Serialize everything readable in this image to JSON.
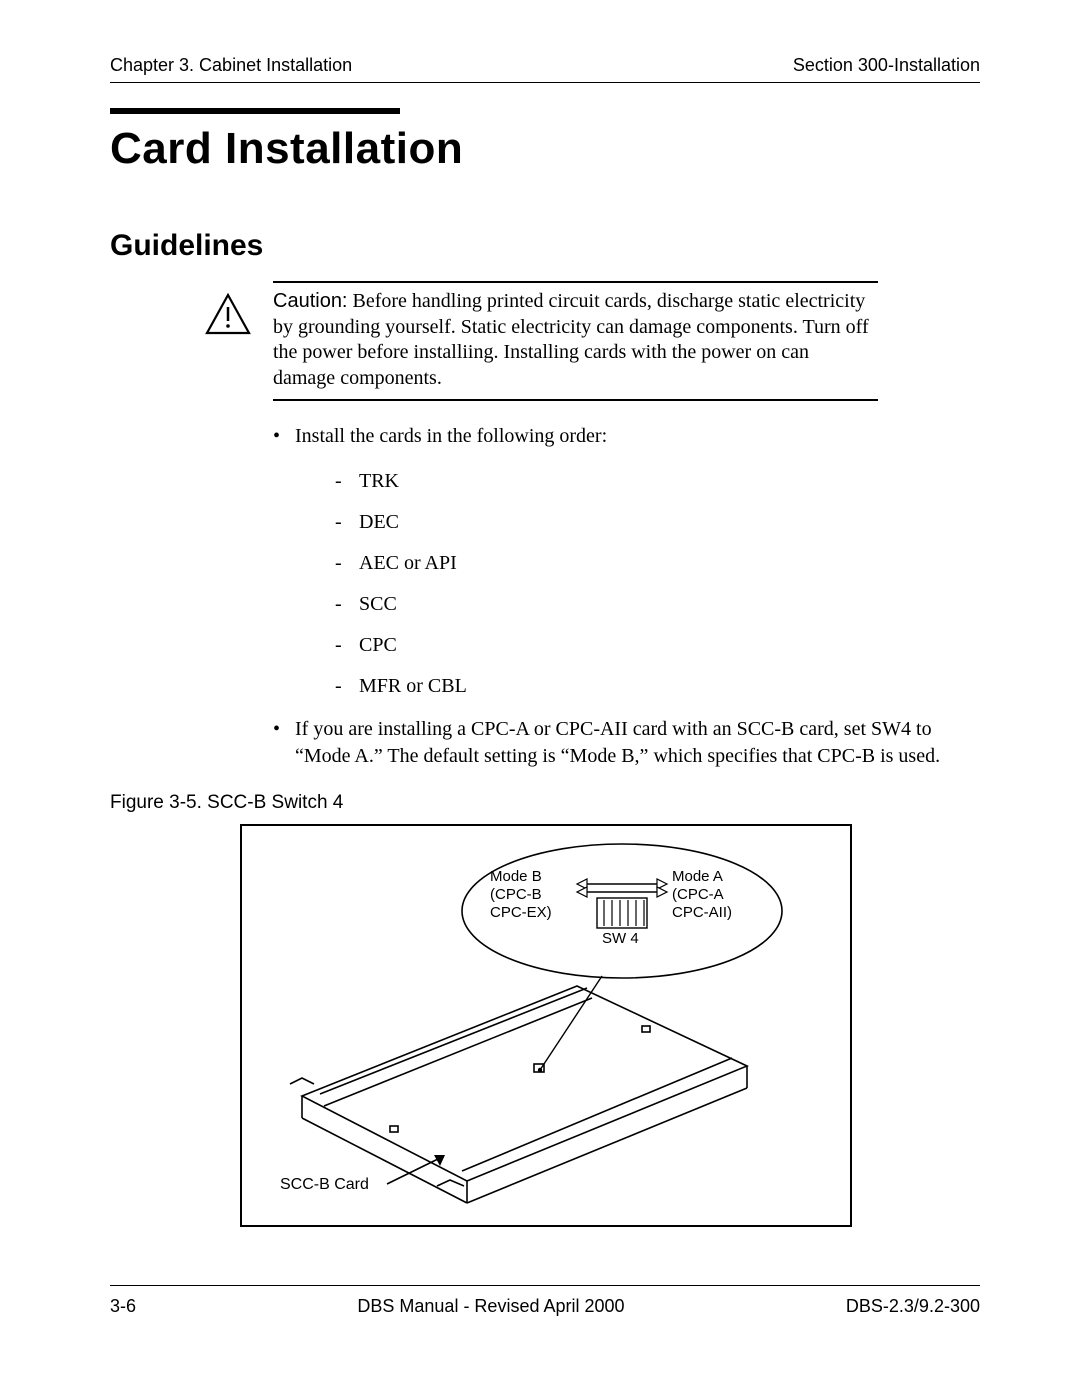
{
  "header": {
    "left": "Chapter 3. Cabinet Installation",
    "right": "Section 300-Installation"
  },
  "title": "Card Installation",
  "subtitle": "Guidelines",
  "caution": {
    "label": "Caution:",
    "text": " Before handling printed circuit cards, discharge static electricity by grounding yourself.  Static electricity can damage components.  Turn off the power before installiing.  Installing cards with the power on can damage components."
  },
  "bullet1": "Install the cards in the following order:",
  "order_items": [
    "TRK",
    "DEC",
    "AEC or API",
    "SCC",
    "CPC",
    "MFR or CBL"
  ],
  "bullet2": "If you are installing a CPC-A or CPC-AII card with an SCC-B card, set SW4 to “Mode A.”  The default setting is “Mode B,” which specifies that CPC-B is used.",
  "figure": {
    "caption": "Figure 3-5. SCC-B Switch 4",
    "card_label": "SCC-B  Card",
    "modeB_label": "Mode B",
    "modeB_sub1": "(CPC-B",
    "modeB_sub2": "CPC-EX)",
    "modeA_label": "Mode A",
    "modeA_sub1": "(CPC-A",
    "modeA_sub2": "CPC-AII)",
    "switch_label": "SW 4"
  },
  "footer": {
    "left": "3-6",
    "center": "DBS Manual - Revised April 2000",
    "right": "DBS-2.3/9.2-300"
  }
}
